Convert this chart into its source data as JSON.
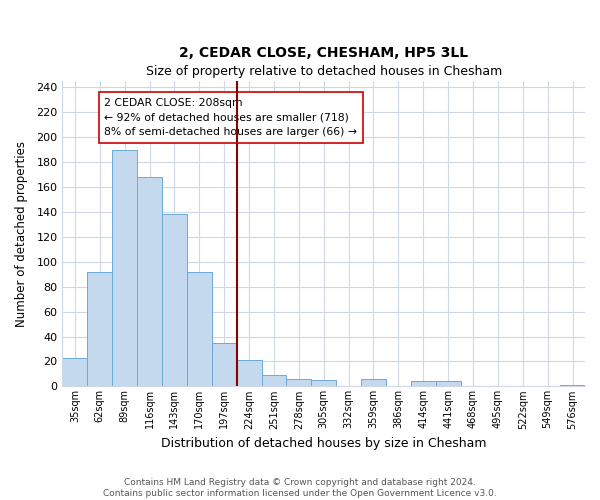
{
  "title": "2, CEDAR CLOSE, CHESHAM, HP5 3LL",
  "subtitle": "Size of property relative to detached houses in Chesham",
  "xlabel": "Distribution of detached houses by size in Chesham",
  "ylabel": "Number of detached properties",
  "bar_labels": [
    "35sqm",
    "62sqm",
    "89sqm",
    "116sqm",
    "143sqm",
    "170sqm",
    "197sqm",
    "224sqm",
    "251sqm",
    "278sqm",
    "305sqm",
    "332sqm",
    "359sqm",
    "386sqm",
    "414sqm",
    "441sqm",
    "468sqm",
    "495sqm",
    "522sqm",
    "549sqm",
    "576sqm"
  ],
  "bar_values": [
    23,
    92,
    190,
    168,
    138,
    92,
    35,
    21,
    9,
    6,
    5,
    0,
    6,
    0,
    4,
    4,
    0,
    0,
    0,
    0,
    1
  ],
  "bar_color": "#c5d9ee",
  "bar_edge_color": "#6aaad4",
  "vline_color": "#8b0000",
  "annotation_title": "2 CEDAR CLOSE: 208sqm",
  "annotation_line1": "← 92% of detached houses are smaller (718)",
  "annotation_line2": "8% of semi-detached houses are larger (66) →",
  "annotation_box_facecolor": "#ffffff",
  "annotation_box_edgecolor": "#cc0000",
  "ylim": [
    0,
    245
  ],
  "yticks": [
    0,
    20,
    40,
    60,
    80,
    100,
    120,
    140,
    160,
    180,
    200,
    220,
    240
  ],
  "footer_line1": "Contains HM Land Registry data © Crown copyright and database right 2024.",
  "footer_line2": "Contains public sector information licensed under the Open Government Licence v3.0.",
  "background_color": "#ffffff",
  "plot_bg_color": "#ffffff",
  "grid_color": "#d0d8e8"
}
